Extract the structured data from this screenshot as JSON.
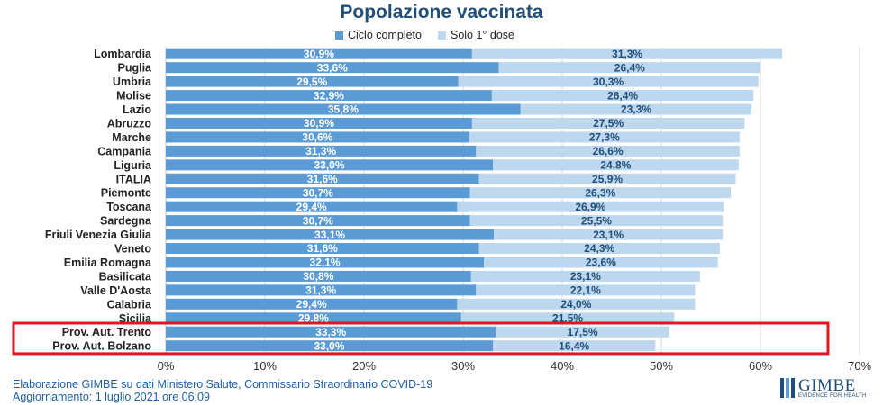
{
  "title": "Popolazione vaccinata",
  "legend": [
    {
      "label": "Ciclo completo",
      "color": "#5b9bd5"
    },
    {
      "label": "Solo 1° dose",
      "color": "#bdd7ee"
    }
  ],
  "colors": {
    "complete": "#5b9bd5",
    "first": "#bdd7ee",
    "highlight": "#e3151d",
    "label_complete": "#ffffff",
    "label_first": "#1f4e79"
  },
  "chart_data": {
    "type": "bar",
    "orientation": "horizontal",
    "stacked": true,
    "categories": [
      "Lombardia",
      "Puglia",
      "Umbria",
      "Molise",
      "Lazio",
      "Abruzzo",
      "Marche",
      "Campania",
      "Liguria",
      "ITALIA",
      "Piemonte",
      "Toscana",
      "Sardegna",
      "Friuli Venezia Giulia",
      "Veneto",
      "Emilia Romagna",
      "Basilicata",
      "Valle D'Aosta",
      "Calabria",
      "Sicilia",
      "Prov. Aut. Trento",
      "Prov. Aut. Bolzano"
    ],
    "series": [
      {
        "name": "Ciclo completo",
        "values": [
          30.9,
          33.6,
          29.5,
          32.9,
          35.8,
          30.9,
          30.6,
          31.3,
          33.0,
          31.6,
          30.7,
          29.4,
          30.7,
          33.1,
          31.6,
          32.1,
          30.8,
          31.3,
          29.4,
          29.8,
          33.3,
          33.0
        ],
        "labels": [
          "30,9%",
          "33,6%",
          "29,5%",
          "32,9%",
          "35,8%",
          "30,9%",
          "30,6%",
          "31,3%",
          "33,0%",
          "31,6%",
          "30,7%",
          "29,4%",
          "30,7%",
          "33,1%",
          "31,6%",
          "32,1%",
          "30,8%",
          "31,3%",
          "29,4%",
          "29,8%",
          "33,3%",
          "33,0%"
        ]
      },
      {
        "name": "Solo 1° dose",
        "values": [
          31.3,
          26.4,
          30.3,
          26.4,
          23.3,
          27.5,
          27.3,
          26.6,
          24.8,
          25.9,
          26.3,
          26.9,
          25.5,
          23.1,
          24.3,
          23.6,
          23.1,
          22.1,
          24.0,
          21.5,
          17.5,
          16.4
        ],
        "labels": [
          "31,3%",
          "26,4%",
          "30,3%",
          "26,4%",
          "23,3%",
          "27,5%",
          "27,3%",
          "26,6%",
          "24,8%",
          "25,9%",
          "26,3%",
          "26,9%",
          "25,5%",
          "23,1%",
          "24,3%",
          "23,6%",
          "23,1%",
          "22,1%",
          "24,0%",
          "21,5%",
          "17,5%",
          "16,4%"
        ]
      }
    ],
    "xlim": [
      0,
      70
    ],
    "x_ticks": [
      "0%",
      "10%",
      "20%",
      "30%",
      "40%",
      "50%",
      "60%",
      "70%"
    ],
    "grid": true,
    "highlighted_categories": [
      "Prov. Aut. Trento",
      "Prov. Aut. Bolzano"
    ]
  },
  "footer": {
    "line1": "Elaborazione GIMBE su dati Ministero Salute, Commissario Straordinario COVID-19",
    "line2": "Aggiornamento: 1 luglio 2021 ore 06:09"
  },
  "logo": {
    "word": "GIMBE",
    "tagline": "EVIDENCE FOR HEALTH"
  }
}
